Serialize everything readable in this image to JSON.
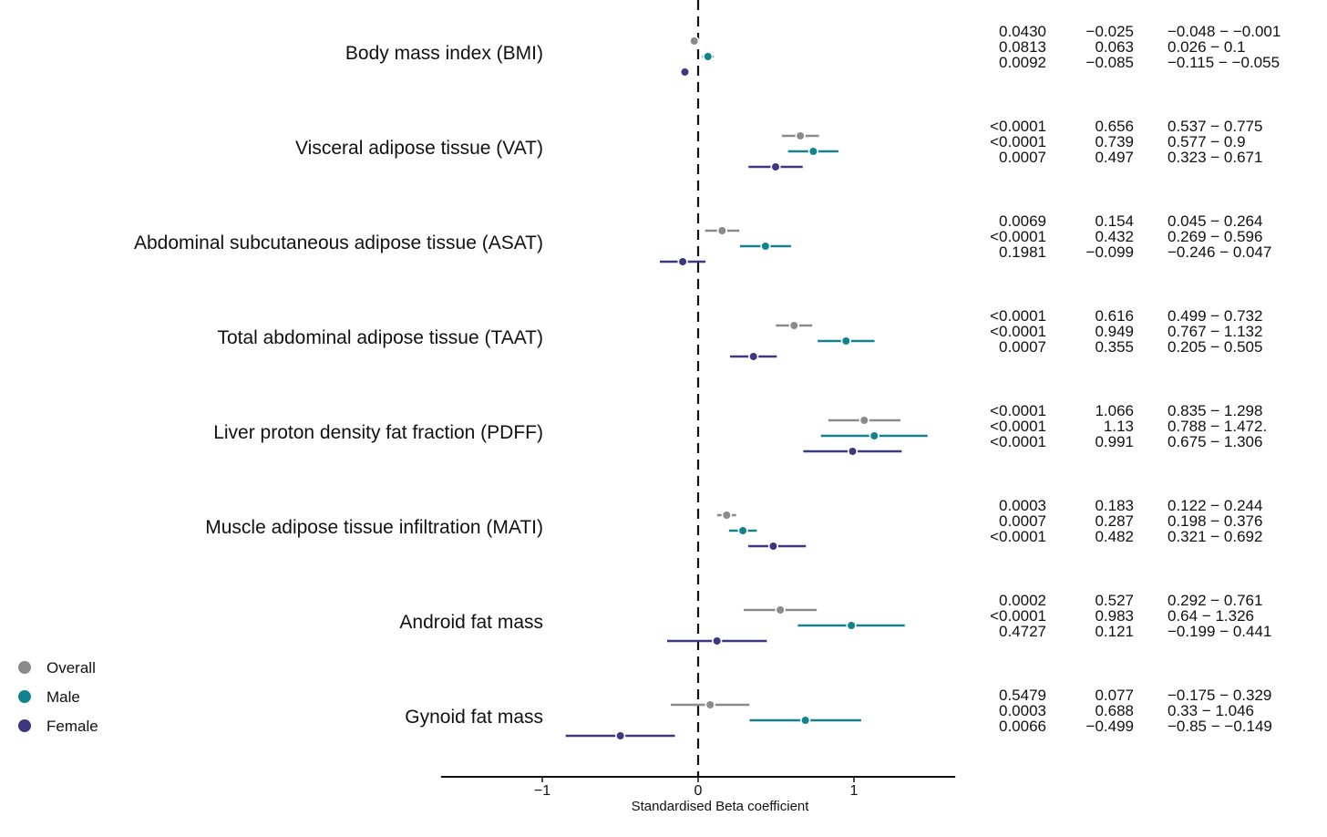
{
  "chart_data": {
    "type": "forest",
    "xlabel": "Standardised Beta coefficient",
    "xlim": [
      -1.65,
      1.65
    ],
    "xticks": [
      -1,
      0,
      1
    ],
    "xtick_labels": [
      "−1",
      "0",
      "1"
    ],
    "reference_line": 0,
    "legend": {
      "position": "bottom-left",
      "entries": [
        {
          "name": "Overall",
          "color": "#8a8a8a"
        },
        {
          "name": "Male",
          "color": "#12828e"
        },
        {
          "name": "Female",
          "color": "#3b3880"
        }
      ]
    },
    "series_colors": {
      "Overall": "#8a8a8a",
      "Male": "#12828e",
      "Female": "#3b3880"
    },
    "rows": [
      {
        "label": "Body mass index (BMI)",
        "estimates": [
          {
            "series": "Overall",
            "p": "0.0430",
            "beta": -0.025,
            "lo": -0.048,
            "hi": -0.001,
            "beta_text": "−0.025",
            "ci_text": "−0.048 − −0.001"
          },
          {
            "series": "Male",
            "p": "0.0813",
            "beta": 0.063,
            "lo": 0.026,
            "hi": 0.1,
            "beta_text": "0.063",
            "ci_text": "0.026 − 0.1"
          },
          {
            "series": "Female",
            "p": "0.0092",
            "beta": -0.085,
            "lo": -0.115,
            "hi": -0.055,
            "beta_text": "−0.085",
            "ci_text": "−0.115 − −0.055"
          }
        ]
      },
      {
        "label": "Visceral adipose tissue (VAT)",
        "estimates": [
          {
            "series": "Overall",
            "p": "<0.0001",
            "beta": 0.656,
            "lo": 0.537,
            "hi": 0.775,
            "beta_text": "0.656",
            "ci_text": "0.537 − 0.775"
          },
          {
            "series": "Male",
            "p": "<0.0001",
            "beta": 0.739,
            "lo": 0.577,
            "hi": 0.9,
            "beta_text": "0.739",
            "ci_text": "0.577 − 0.9"
          },
          {
            "series": "Female",
            "p": "0.0007",
            "beta": 0.497,
            "lo": 0.323,
            "hi": 0.671,
            "beta_text": "0.497",
            "ci_text": "0.323 − 0.671"
          }
        ]
      },
      {
        "label": "Abdominal subcutaneous adipose tissue (ASAT)",
        "estimates": [
          {
            "series": "Overall",
            "p": "0.0069",
            "beta": 0.154,
            "lo": 0.045,
            "hi": 0.264,
            "beta_text": "0.154",
            "ci_text": "0.045 − 0.264"
          },
          {
            "series": "Male",
            "p": "<0.0001",
            "beta": 0.432,
            "lo": 0.269,
            "hi": 0.596,
            "beta_text": "0.432",
            "ci_text": "0.269 − 0.596"
          },
          {
            "series": "Female",
            "p": "0.1981",
            "beta": -0.099,
            "lo": -0.246,
            "hi": 0.047,
            "beta_text": "−0.099",
            "ci_text": "−0.246 − 0.047"
          }
        ]
      },
      {
        "label": "Total abdominal adipose tissue (TAAT)",
        "estimates": [
          {
            "series": "Overall",
            "p": "<0.0001",
            "beta": 0.616,
            "lo": 0.499,
            "hi": 0.732,
            "beta_text": "0.616",
            "ci_text": "0.499 − 0.732"
          },
          {
            "series": "Male",
            "p": "<0.0001",
            "beta": 0.949,
            "lo": 0.767,
            "hi": 1.132,
            "beta_text": "0.949",
            "ci_text": "0.767 − 1.132"
          },
          {
            "series": "Female",
            "p": "0.0007",
            "beta": 0.355,
            "lo": 0.205,
            "hi": 0.505,
            "beta_text": "0.355",
            "ci_text": "0.205 − 0.505"
          }
        ]
      },
      {
        "label": "Liver proton density fat fraction (PDFF)",
        "estimates": [
          {
            "series": "Overall",
            "p": "<0.0001",
            "beta": 1.066,
            "lo": 0.835,
            "hi": 1.298,
            "beta_text": "1.066",
            "ci_text": "0.835 − 1.298"
          },
          {
            "series": "Male",
            "p": "<0.0001",
            "beta": 1.13,
            "lo": 0.788,
            "hi": 1.472,
            "beta_text": "1.13",
            "ci_text": "0.788 − 1.472."
          },
          {
            "series": "Female",
            "p": "<0.0001",
            "beta": 0.991,
            "lo": 0.675,
            "hi": 1.306,
            "beta_text": "0.991",
            "ci_text": "0.675 − 1.306"
          }
        ]
      },
      {
        "label": "Muscle adipose tissue infiltration (MATI)",
        "estimates": [
          {
            "series": "Overall",
            "p": "0.0003",
            "beta": 0.183,
            "lo": 0.122,
            "hi": 0.244,
            "beta_text": "0.183",
            "ci_text": "0.122 − 0.244"
          },
          {
            "series": "Male",
            "p": "0.0007",
            "beta": 0.287,
            "lo": 0.198,
            "hi": 0.376,
            "beta_text": "0.287",
            "ci_text": "0.198 − 0.376"
          },
          {
            "series": "Female",
            "p": "<0.0001",
            "beta": 0.482,
            "lo": 0.321,
            "hi": 0.692,
            "beta_text": "0.482",
            "ci_text": "0.321 − 0.692"
          }
        ]
      },
      {
        "label": "Android fat mass",
        "estimates": [
          {
            "series": "Overall",
            "p": "0.0002",
            "beta": 0.527,
            "lo": 0.292,
            "hi": 0.761,
            "beta_text": "0.527",
            "ci_text": "0.292 − 0.761"
          },
          {
            "series": "Male",
            "p": "<0.0001",
            "beta": 0.983,
            "lo": 0.64,
            "hi": 1.326,
            "beta_text": "0.983",
            "ci_text": "0.64 − 1.326"
          },
          {
            "series": "Female",
            "p": "0.4727",
            "beta": 0.121,
            "lo": -0.199,
            "hi": 0.441,
            "beta_text": "0.121",
            "ci_text": "−0.199 − 0.441"
          }
        ]
      },
      {
        "label": "Gynoid fat mass",
        "estimates": [
          {
            "series": "Overall",
            "p": "0.5479",
            "beta": 0.077,
            "lo": -0.175,
            "hi": 0.329,
            "beta_text": "0.077",
            "ci_text": "−0.175 − 0.329"
          },
          {
            "series": "Male",
            "p": "0.0003",
            "beta": 0.688,
            "lo": 0.33,
            "hi": 1.046,
            "beta_text": "0.688",
            "ci_text": "0.33 − 1.046"
          },
          {
            "series": "Female",
            "p": "0.0066",
            "beta": -0.499,
            "lo": -0.85,
            "hi": -0.149,
            "beta_text": "−0.499",
            "ci_text": "−0.85 − −0.149"
          }
        ]
      }
    ]
  }
}
